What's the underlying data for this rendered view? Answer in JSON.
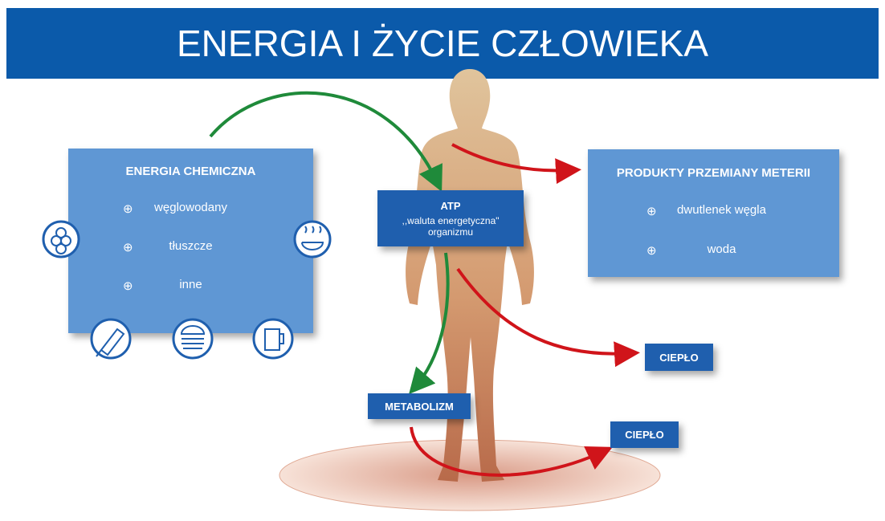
{
  "header": {
    "title": "ENERGIA I ŻYCIE CZŁOWIEKA"
  },
  "chemical_energy": {
    "title": "ENERGIA CHEMICZNA",
    "items": [
      "węglowodany",
      "tłuszcze",
      "inne"
    ]
  },
  "atp": {
    "title": "ATP",
    "lines": [
      ",,waluta  energetyczna\"",
      "organizmu"
    ]
  },
  "products": {
    "title": "PRODUKTY PRZEMIANY METERII",
    "items": [
      "dwutlenek węgla",
      "woda"
    ]
  },
  "metabolism": {
    "label": "METABOLIZM"
  },
  "heat": [
    {
      "label": "CIEPŁO"
    },
    {
      "label": "CIEPŁO"
    }
  ]
}
